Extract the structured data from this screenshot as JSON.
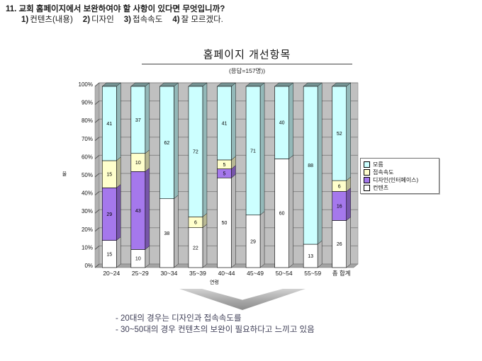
{
  "question": {
    "line1": "11. 교회 홈페이지에서 보완하여야 할 사항이 있다면 무엇입니까?",
    "options": [
      {
        "marker": "1)",
        "text": "컨텐츠(내용)"
      },
      {
        "marker": "2)",
        "text": "디자인"
      },
      {
        "marker": "3)",
        "text": "접속속도"
      },
      {
        "marker": "4)",
        "text": "잘 모르겠다."
      }
    ]
  },
  "chart_data": {
    "type": "bar",
    "variant": "100%-stacked-3d",
    "title": "홈페이지 개선항목",
    "subtitle": "(응답=157명))",
    "xlabel": "연령",
    "ylabel": "율",
    "categories": [
      "20~24",
      "25~29",
      "30~34",
      "35~39",
      "40~44",
      "45~49",
      "50~54",
      "55~59",
      "총 합계"
    ],
    "series": [
      {
        "name": "컨텐츠",
        "color": "#ffffff",
        "values": [
          15,
          10,
          38,
          22,
          50,
          29,
          60,
          13,
          26
        ]
      },
      {
        "name": "디자인(인터페이스)",
        "color": "#a578ec",
        "values": [
          29,
          43,
          0,
          0,
          5,
          0,
          0,
          0,
          16
        ]
      },
      {
        "name": "접속속도",
        "color": "#ffffcc",
        "values": [
          15,
          10,
          0,
          6,
          5,
          0,
          0,
          0,
          6
        ]
      },
      {
        "name": "모름",
        "color": "#ccffff",
        "values": [
          41,
          37,
          62,
          72,
          41,
          71,
          40,
          88,
          52
        ]
      }
    ],
    "legend": [
      "모름",
      "접속속도",
      "디자인(인터페이스)",
      "컨텐츠"
    ],
    "legend_position": "right",
    "yticks": [
      "0%",
      "10%",
      "20%",
      "30%",
      "40%",
      "50%",
      "60%",
      "70%",
      "80%",
      "90%",
      "100%"
    ],
    "ylim": [
      0,
      100
    ],
    "grid": "horizontal"
  },
  "notes": {
    "line1": "- 20대의 경우는 디자인과 접속속도를",
    "line2": "- 30~50대의 경우 컨텐츠의 보완이 필요하다고 느끼고 있음"
  },
  "colors": {
    "back_wall": "#c0c0c0",
    "side_wall": "#b2b2b2",
    "floor": "#a4a4a4",
    "gridline": "#868686",
    "bar_outline": "#000000",
    "note_text": "#3d3d55",
    "arrow_gray": "#a8a8a8"
  }
}
